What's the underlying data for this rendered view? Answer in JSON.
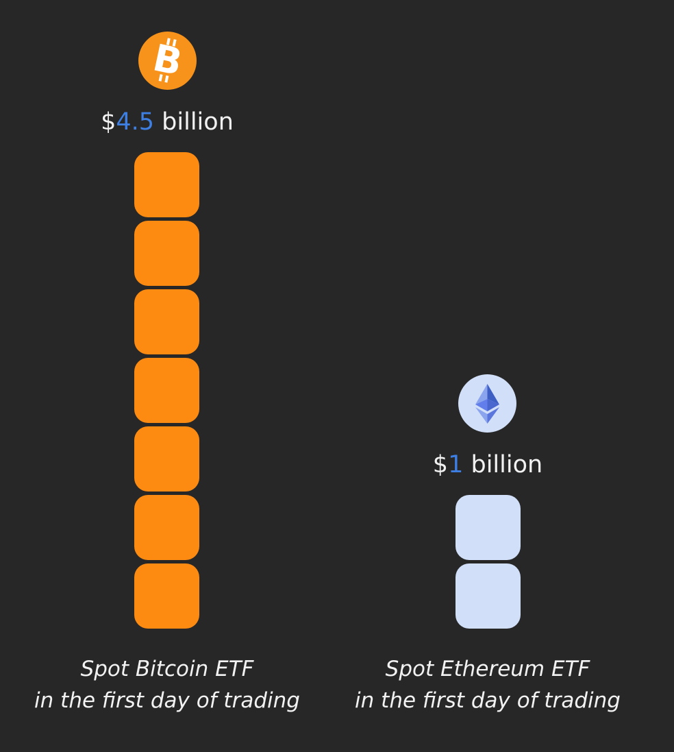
{
  "chart_data": {
    "type": "bar",
    "categories": [
      "Spot Bitcoin ETF",
      "Spot Ethereum ETF"
    ],
    "values": [
      4.5,
      1
    ],
    "unit": "billion",
    "blocks": [
      7,
      2
    ],
    "bars": [
      {
        "icon": "bitcoin-icon",
        "value_prefix": "$",
        "value_number": "4.5",
        "value_suffix": " billion",
        "caption_line1": "Spot Bitcoin ETF",
        "caption_line2": "in the first day of trading",
        "block_color": "#fd8b12"
      },
      {
        "icon": "ethereum-icon",
        "value_prefix": "$",
        "value_number": "1",
        "value_suffix": " billion",
        "caption_line1": "Spot Ethereum ETF",
        "caption_line2": "in the first day of trading",
        "block_color": "#d1dff9"
      }
    ]
  },
  "colors": {
    "background": "#272727",
    "bitcoin_orange": "#f7931a",
    "ethereum_bg": "#d1dff9",
    "ethereum_blue": "#627eea",
    "number_accent": "#3d7fe3",
    "text": "#f2f2f2"
  }
}
